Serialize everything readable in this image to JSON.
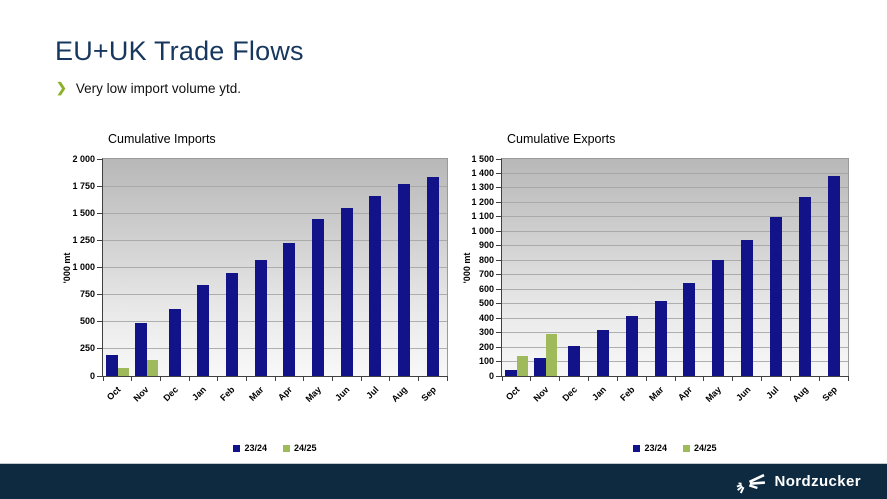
{
  "slide": {
    "title": "EU+UK Trade Flows",
    "bullet": "Very low import volume ytd.",
    "bullet_icon": "❯"
  },
  "footer": {
    "brand": "Nordzucker"
  },
  "colors": {
    "title_navy": "#17375E",
    "accent_green": "#8CB22B",
    "bar_navy": "#131389",
    "bar_green": "#9EBA5A",
    "footer_navy": "#0D2A40"
  },
  "chart_data": [
    {
      "type": "bar",
      "title": "Cumulative Imports",
      "ylabel": "'000 mt",
      "ylim": [
        0,
        2000
      ],
      "ytick_step": 250,
      "grid": true,
      "legend_position": "bottom",
      "categories": [
        "Oct",
        "Nov",
        "Dec",
        "Jan",
        "Feb",
        "Mar",
        "Apr",
        "May",
        "Jun",
        "Jul",
        "Aug",
        "Sep"
      ],
      "series": [
        {
          "name": "23/24",
          "color": "#131389",
          "values": [
            190,
            485,
            620,
            835,
            950,
            1065,
            1230,
            1450,
            1545,
            1655,
            1770,
            1835
          ]
        },
        {
          "name": "24/25",
          "color": "#9EBA5A",
          "values": [
            70,
            150,
            null,
            null,
            null,
            null,
            null,
            null,
            null,
            null,
            null,
            null
          ]
        }
      ]
    },
    {
      "type": "bar",
      "title": "Cumulative Exports",
      "ylabel": "'000 mt",
      "ylim": [
        0,
        1500
      ],
      "ytick_step": 100,
      "grid": true,
      "legend_position": "bottom",
      "categories": [
        "Oct",
        "Nov",
        "Dec",
        "Jan",
        "Feb",
        "Mar",
        "Apr",
        "May",
        "Jun",
        "Jul",
        "Aug",
        "Sep"
      ],
      "series": [
        {
          "name": "23/24",
          "color": "#131389",
          "values": [
            45,
            125,
            210,
            320,
            415,
            520,
            640,
            800,
            940,
            1100,
            1240,
            1385
          ]
        },
        {
          "name": "24/25",
          "color": "#9EBA5A",
          "values": [
            135,
            290,
            null,
            null,
            null,
            null,
            null,
            null,
            null,
            null,
            null,
            null
          ]
        }
      ]
    }
  ]
}
